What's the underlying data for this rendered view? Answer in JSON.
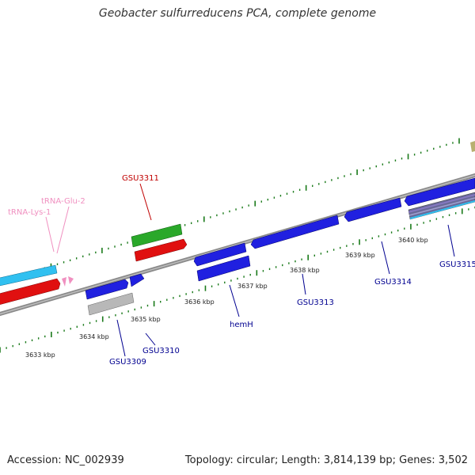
{
  "title": "Geobacter sulfurreducens PCA, complete genome",
  "footer": {
    "accession": "Accession: NC_002939",
    "info": "Topology: circular; Length: 3,814,139 bp; Genes: 3,502"
  },
  "colors": {
    "backbone": "#8a8a8a",
    "tick": "#1a7a1a",
    "cds_plus": "#2020e0",
    "cds_red": "#e01010",
    "cds_green": "#2aa82a",
    "cds_cyan": "#30c0f0",
    "cds_grey": "#b8b8b8",
    "trna": "#f090c0",
    "label_blue": "#000090",
    "label_red": "#c00000",
    "label_pink": "#f090c0"
  },
  "scale_labels": [
    "3633 kbp",
    "3634 kbp",
    "3635 kbp",
    "3636 kbp",
    "3637 kbp",
    "3638 kbp",
    "3639 kbp",
    "3640 kbp"
  ],
  "gene_labels": [
    {
      "name": "GSU3311",
      "color": "red"
    },
    {
      "name": "tRNA-Glu-2",
      "color": "pink"
    },
    {
      "name": "tRNA-Lys-1",
      "color": "pink"
    },
    {
      "name": "GSU3309",
      "color": "blue"
    },
    {
      "name": "GSU3310",
      "color": "blue"
    },
    {
      "name": "hemH",
      "color": "blue"
    },
    {
      "name": "GSU3313",
      "color": "blue"
    },
    {
      "name": "GSU3314",
      "color": "blue"
    },
    {
      "name": "GSU3315",
      "color": "blue"
    }
  ]
}
